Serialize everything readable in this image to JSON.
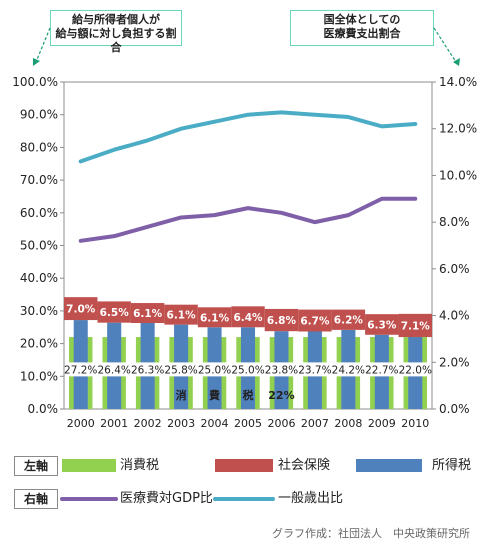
{
  "chart_data": {
    "type": "bar+line",
    "categories": [
      "2000",
      "2001",
      "2002",
      "2003",
      "2004",
      "2005",
      "2006",
      "2007",
      "2008",
      "2009",
      "2010"
    ],
    "left_axis": {
      "ylim": [
        0,
        100
      ],
      "tick_labels": [
        "0.0%",
        "10.0%",
        "20.0%",
        "30.0%",
        "40.0%",
        "50.0%",
        "60.0%",
        "70.0%",
        "80.0%",
        "90.0%",
        "100.0%"
      ]
    },
    "right_axis": {
      "ylim": [
        0,
        14
      ],
      "tick_labels": [
        "0.0%",
        "2.0%",
        "4.0%",
        "6.0%",
        "8.0%",
        "10.0%",
        "12.0%",
        "14.0%"
      ]
    },
    "bar_series": [
      {
        "name": "消費税",
        "color": "#92d050",
        "values": [
          22,
          22,
          22,
          22,
          22,
          22,
          22,
          22,
          22,
          22,
          22
        ]
      },
      {
        "name": "所得税",
        "color": "#4f81bd",
        "values": [
          27.2,
          26.4,
          26.3,
          25.8,
          25.0,
          25.0,
          23.8,
          23.7,
          24.2,
          22.7,
          22.0
        ],
        "labels": [
          "27.2%",
          "26.4%",
          "26.3%",
          "25.8%",
          "25.0%",
          "25.0%",
          "23.8%",
          "23.7%",
          "24.2%",
          "22.7%",
          "22.0%"
        ]
      },
      {
        "name": "社会保険",
        "color": "#c0504d",
        "values": [
          7.0,
          6.5,
          6.1,
          6.1,
          6.1,
          6.4,
          6.8,
          6.7,
          6.2,
          6.3,
          7.1
        ],
        "labels": [
          "7.0%",
          "6.5%",
          "6.1%",
          "6.1%",
          "6.1%",
          "6.4%",
          "6.8%",
          "6.7%",
          "6.2%",
          "6.3%",
          "7.1%"
        ]
      }
    ],
    "consumption_tax_annotation": [
      "消",
      "費",
      "税",
      "22%"
    ],
    "line_series": [
      {
        "name": "医療費対GDP比",
        "color": "#7f5fa8",
        "values": [
          7.2,
          7.4,
          7.8,
          8.2,
          8.3,
          8.6,
          8.4,
          8.0,
          8.3,
          9.0,
          9.0
        ]
      },
      {
        "name": "一般歳出比",
        "color": "#4bacc6",
        "values": [
          10.6,
          11.1,
          11.5,
          12.0,
          12.3,
          12.6,
          12.7,
          12.6,
          12.5,
          12.1,
          12.2
        ]
      }
    ],
    "grid": false
  },
  "callouts": {
    "left": [
      "給与所得者個人が",
      "給与額に対し負担する割合"
    ],
    "right": [
      "国全体としての",
      "医療費支出割合"
    ]
  },
  "legend": {
    "left_axis_tag": "左軸",
    "right_axis_tag": "右軸",
    "left_items": [
      "消費税",
      "社会保険",
      "所得税"
    ],
    "right_items": [
      "医療費対GDP比",
      "一般歳出比"
    ]
  },
  "credit": "グラフ作成：社団法人　中央政策研究所"
}
